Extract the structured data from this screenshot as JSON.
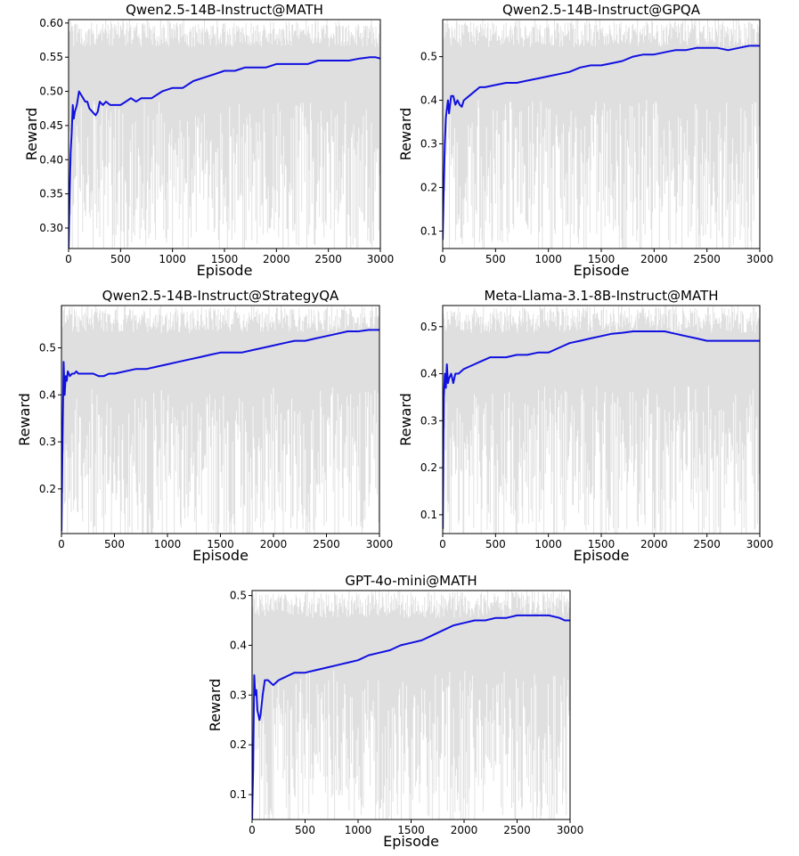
{
  "chart_data": [
    {
      "type": "line",
      "title": "Qwen2.5-14B-Instruct@MATH",
      "xlabel": "Episode",
      "ylabel": "Reward",
      "xlim": [
        0,
        3000
      ],
      "ylim": [
        0.27,
        0.605
      ],
      "xticks": [
        0,
        500,
        1000,
        1500,
        2000,
        2500,
        3000
      ],
      "yticks": [
        0.3,
        0.35,
        0.4,
        0.45,
        0.5,
        0.55,
        0.6
      ],
      "ytick_decimals": 2,
      "grid": false,
      "raw_series_color": "#d9d9d9",
      "series": [
        {
          "color": "#1010e0",
          "x": [
            0,
            10,
            20,
            30,
            40,
            50,
            60,
            80,
            100,
            120,
            140,
            160,
            180,
            200,
            230,
            260,
            280,
            300,
            330,
            360,
            400,
            450,
            500,
            550,
            600,
            650,
            700,
            750,
            800,
            900,
            1000,
            1100,
            1200,
            1300,
            1400,
            1500,
            1600,
            1700,
            1800,
            1900,
            2000,
            2100,
            2200,
            2300,
            2400,
            2500,
            2600,
            2700,
            2800,
            2900,
            2950,
            3000
          ],
          "y": [
            0.27,
            0.35,
            0.41,
            0.44,
            0.48,
            0.46,
            0.47,
            0.48,
            0.5,
            0.495,
            0.49,
            0.485,
            0.485,
            0.475,
            0.47,
            0.465,
            0.47,
            0.485,
            0.48,
            0.485,
            0.48,
            0.48,
            0.48,
            0.485,
            0.49,
            0.485,
            0.49,
            0.49,
            0.49,
            0.5,
            0.505,
            0.505,
            0.515,
            0.52,
            0.525,
            0.53,
            0.53,
            0.535,
            0.535,
            0.535,
            0.54,
            0.54,
            0.54,
            0.54,
            0.545,
            0.545,
            0.545,
            0.545,
            0.548,
            0.55,
            0.55,
            0.548
          ]
        }
      ]
    },
    {
      "type": "line",
      "title": "Qwen2.5-14B-Instruct@GPQA",
      "xlabel": "Episode",
      "ylabel": "Reward",
      "xlim": [
        0,
        3000
      ],
      "ylim": [
        0.06,
        0.585
      ],
      "xticks": [
        0,
        500,
        1000,
        1500,
        2000,
        2500,
        3000
      ],
      "yticks": [
        0.1,
        0.2,
        0.3,
        0.4,
        0.5
      ],
      "ytick_decimals": 1,
      "grid": false,
      "raw_series_color": "#d9d9d9",
      "series": [
        {
          "color": "#1010e0",
          "x": [
            0,
            10,
            20,
            30,
            40,
            50,
            60,
            80,
            100,
            120,
            140,
            160,
            180,
            200,
            250,
            300,
            350,
            400,
            500,
            600,
            700,
            800,
            900,
            1000,
            1100,
            1200,
            1300,
            1400,
            1500,
            1600,
            1700,
            1800,
            1900,
            2000,
            2100,
            2200,
            2300,
            2400,
            2500,
            2600,
            2700,
            2800,
            2900,
            3000
          ],
          "y": [
            0.08,
            0.2,
            0.3,
            0.36,
            0.38,
            0.4,
            0.37,
            0.41,
            0.41,
            0.39,
            0.4,
            0.39,
            0.385,
            0.4,
            0.41,
            0.42,
            0.43,
            0.43,
            0.435,
            0.44,
            0.44,
            0.445,
            0.45,
            0.455,
            0.46,
            0.465,
            0.475,
            0.48,
            0.48,
            0.485,
            0.49,
            0.5,
            0.505,
            0.505,
            0.51,
            0.515,
            0.515,
            0.52,
            0.52,
            0.52,
            0.515,
            0.52,
            0.525,
            0.525
          ]
        }
      ]
    },
    {
      "type": "line",
      "title": "Qwen2.5-14B-Instruct@StrategyQA",
      "xlabel": "Episode",
      "ylabel": "Reward",
      "xlim": [
        0,
        3000
      ],
      "ylim": [
        0.105,
        0.59
      ],
      "xticks": [
        0,
        500,
        1000,
        1500,
        2000,
        2500,
        3000
      ],
      "yticks": [
        0.2,
        0.3,
        0.4,
        0.5
      ],
      "ytick_decimals": 1,
      "grid": false,
      "raw_series_color": "#d9d9d9",
      "series": [
        {
          "color": "#1010e0",
          "x": [
            0,
            10,
            20,
            30,
            40,
            50,
            60,
            80,
            100,
            120,
            140,
            160,
            200,
            250,
            300,
            350,
            400,
            450,
            500,
            600,
            700,
            800,
            900,
            1000,
            1100,
            1200,
            1300,
            1400,
            1500,
            1600,
            1700,
            1800,
            1900,
            2000,
            2100,
            2200,
            2300,
            2400,
            2500,
            2600,
            2700,
            2800,
            2900,
            3000
          ],
          "y": [
            0.11,
            0.3,
            0.47,
            0.4,
            0.44,
            0.43,
            0.45,
            0.44,
            0.445,
            0.445,
            0.45,
            0.445,
            0.445,
            0.445,
            0.445,
            0.44,
            0.44,
            0.445,
            0.445,
            0.45,
            0.455,
            0.455,
            0.46,
            0.465,
            0.47,
            0.475,
            0.48,
            0.485,
            0.49,
            0.49,
            0.49,
            0.495,
            0.5,
            0.505,
            0.51,
            0.515,
            0.515,
            0.52,
            0.525,
            0.53,
            0.535,
            0.535,
            0.538,
            0.538
          ]
        }
      ]
    },
    {
      "type": "line",
      "title": "Meta-Llama-3.1-8B-Instruct@MATH",
      "xlabel": "Episode",
      "ylabel": "Reward",
      "xlim": [
        0,
        3000
      ],
      "ylim": [
        0.06,
        0.545
      ],
      "xticks": [
        0,
        500,
        1000,
        1500,
        2000,
        2500,
        3000
      ],
      "yticks": [
        0.1,
        0.2,
        0.3,
        0.4,
        0.5
      ],
      "ytick_decimals": 1,
      "grid": false,
      "raw_series_color": "#d9d9d9",
      "series": [
        {
          "color": "#1010e0",
          "x": [
            0,
            10,
            20,
            30,
            40,
            50,
            60,
            80,
            100,
            120,
            150,
            200,
            250,
            300,
            350,
            400,
            450,
            500,
            600,
            700,
            800,
            900,
            1000,
            1100,
            1200,
            1300,
            1400,
            1500,
            1600,
            1700,
            1800,
            1900,
            2000,
            2100,
            2200,
            2300,
            2400,
            2500,
            2600,
            2700,
            2800,
            2900,
            3000
          ],
          "y": [
            0.07,
            0.35,
            0.4,
            0.37,
            0.42,
            0.38,
            0.39,
            0.4,
            0.38,
            0.4,
            0.4,
            0.41,
            0.415,
            0.42,
            0.425,
            0.43,
            0.435,
            0.435,
            0.435,
            0.44,
            0.44,
            0.445,
            0.445,
            0.455,
            0.465,
            0.47,
            0.475,
            0.48,
            0.485,
            0.487,
            0.49,
            0.49,
            0.49,
            0.49,
            0.485,
            0.48,
            0.475,
            0.47,
            0.47,
            0.47,
            0.47,
            0.47,
            0.47
          ]
        }
      ]
    },
    {
      "type": "line",
      "title": "GPT-4o-mini@MATH",
      "xlabel": "Episode",
      "ylabel": "Reward",
      "xlim": [
        0,
        3000
      ],
      "ylim": [
        0.05,
        0.51
      ],
      "xticks": [
        0,
        500,
        1000,
        1500,
        2000,
        2500,
        3000
      ],
      "yticks": [
        0.1,
        0.2,
        0.3,
        0.4,
        0.5
      ],
      "ytick_decimals": 1,
      "grid": false,
      "raw_series_color": "#d9d9d9",
      "series": [
        {
          "color": "#1010e0",
          "x": [
            0,
            10,
            20,
            30,
            40,
            50,
            60,
            70,
            80,
            100,
            120,
            150,
            200,
            250,
            300,
            350,
            400,
            500,
            600,
            700,
            800,
            900,
            1000,
            1100,
            1200,
            1300,
            1400,
            1500,
            1600,
            1700,
            1800,
            1900,
            2000,
            2100,
            2200,
            2300,
            2400,
            2500,
            2600,
            2700,
            2800,
            2900,
            2950,
            3000
          ],
          "y": [
            0.05,
            0.15,
            0.34,
            0.3,
            0.31,
            0.27,
            0.26,
            0.25,
            0.26,
            0.3,
            0.33,
            0.33,
            0.32,
            0.33,
            0.335,
            0.34,
            0.345,
            0.345,
            0.35,
            0.355,
            0.36,
            0.365,
            0.37,
            0.38,
            0.385,
            0.39,
            0.4,
            0.405,
            0.41,
            0.42,
            0.43,
            0.44,
            0.445,
            0.45,
            0.45,
            0.455,
            0.455,
            0.46,
            0.46,
            0.46,
            0.46,
            0.455,
            0.45,
            0.45
          ]
        }
      ]
    }
  ]
}
